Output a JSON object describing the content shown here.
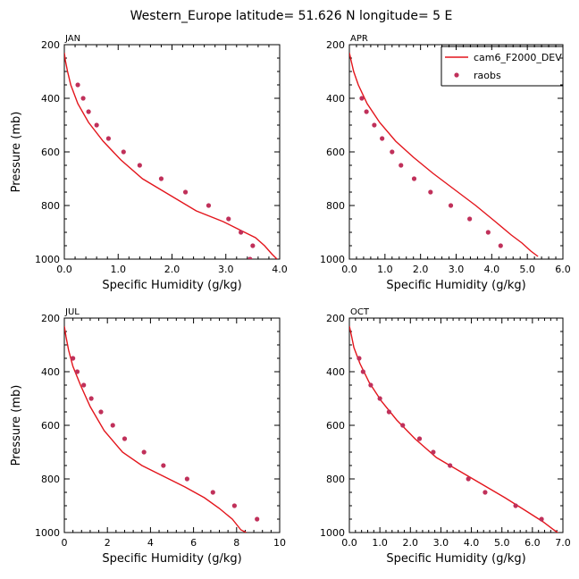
{
  "title": "Western_Europe  latitude= 51.626 N longitude= 5 E",
  "colors": {
    "model_line": "#e3151c",
    "obs_marker": "#c0305a",
    "axes": "#000000"
  },
  "legend": {
    "placement": "top-right of APR panel",
    "entries": [
      {
        "label": "cam6_F2000_DEV",
        "style": "line"
      },
      {
        "label": "raobs",
        "style": "marker"
      }
    ]
  },
  "chart_data": [
    {
      "panel": "JAN",
      "type": "line",
      "xlabel": "Specific Humidity (g/kg)",
      "ylabel": "Pressure (mb)",
      "xlim": [
        0,
        4
      ],
      "ylim": [
        1000,
        200
      ],
      "y_inverted": true,
      "xticks": [
        "0.0",
        "1.0",
        "2.0",
        "3.0",
        "4.0"
      ],
      "yticks": [
        "200",
        "400",
        "600",
        "800",
        "1000"
      ],
      "series": [
        {
          "name": "cam6_F2000_DEV",
          "style": "line",
          "x": [
            0.0,
            0.02,
            0.06,
            0.12,
            0.25,
            0.45,
            0.72,
            1.05,
            1.45,
            1.95,
            2.45,
            2.95,
            3.35,
            3.55,
            3.72,
            3.85,
            3.95
          ],
          "y": [
            230,
            260,
            300,
            350,
            420,
            490,
            560,
            630,
            700,
            760,
            820,
            860,
            900,
            920,
            950,
            980,
            1000
          ]
        },
        {
          "name": "raobs",
          "style": "marker",
          "x": [
            0.25,
            0.35,
            0.45,
            0.6,
            0.82,
            1.1,
            1.4,
            1.8,
            2.25,
            2.68,
            3.05,
            3.28,
            3.5,
            3.45
          ],
          "y": [
            350,
            400,
            450,
            500,
            550,
            600,
            650,
            700,
            750,
            800,
            850,
            900,
            950,
            1000
          ]
        }
      ]
    },
    {
      "panel": "APR",
      "type": "line",
      "xlabel": "Specific Humidity (g/kg)",
      "ylabel": "",
      "xlim": [
        0,
        6
      ],
      "ylim": [
        1000,
        200
      ],
      "y_inverted": true,
      "xticks": [
        "0.0",
        "1.0",
        "2.0",
        "3.0",
        "4.0",
        "5.0",
        "6.0"
      ],
      "yticks": [
        "200",
        "400",
        "600",
        "800",
        "1000"
      ],
      "series": [
        {
          "name": "cam6_F2000_DEV",
          "style": "line",
          "x": [
            0.0,
            0.05,
            0.12,
            0.25,
            0.5,
            0.85,
            1.3,
            1.8,
            2.35,
            2.95,
            3.55,
            4.1,
            4.55,
            4.85,
            5.1,
            5.3
          ],
          "y": [
            230,
            260,
            300,
            350,
            420,
            490,
            560,
            620,
            680,
            740,
            800,
            860,
            910,
            940,
            970,
            990
          ]
        },
        {
          "name": "raobs",
          "style": "marker",
          "x": [
            0.35,
            0.48,
            0.7,
            0.92,
            1.2,
            1.45,
            1.82,
            2.28,
            2.85,
            3.38,
            3.9,
            4.25
          ],
          "y": [
            400,
            450,
            500,
            550,
            600,
            650,
            700,
            750,
            800,
            850,
            900,
            950
          ]
        }
      ]
    },
    {
      "panel": "JUL",
      "type": "line",
      "xlabel": "Specific Humidity (g/kg)",
      "ylabel": "Pressure (mb)",
      "xlim": [
        0,
        10
      ],
      "ylim": [
        1000,
        200
      ],
      "y_inverted": true,
      "xticks": [
        "0",
        "2",
        "4",
        "6",
        "8",
        "10"
      ],
      "yticks": [
        "200",
        "400",
        "600",
        "800",
        "1000"
      ],
      "series": [
        {
          "name": "cam6_F2000_DEV",
          "style": "line",
          "x": [
            0.0,
            0.08,
            0.2,
            0.4,
            0.75,
            1.2,
            1.85,
            2.7,
            3.6,
            4.6,
            5.6,
            6.5,
            7.2,
            7.8,
            8.2,
            8.45
          ],
          "y": [
            230,
            270,
            320,
            380,
            450,
            530,
            620,
            700,
            750,
            790,
            830,
            870,
            910,
            950,
            990,
            1000
          ]
        },
        {
          "name": "raobs",
          "style": "marker",
          "x": [
            0.4,
            0.6,
            0.9,
            1.25,
            1.7,
            2.25,
            2.8,
            3.7,
            4.6,
            5.7,
            6.9,
            7.9,
            8.95
          ],
          "y": [
            350,
            400,
            450,
            500,
            550,
            600,
            650,
            700,
            750,
            800,
            850,
            900,
            950
          ]
        }
      ]
    },
    {
      "panel": "OCT",
      "type": "line",
      "xlabel": "Specific Humidity (g/kg)",
      "ylabel": "",
      "xlim": [
        0,
        7
      ],
      "ylim": [
        1000,
        200
      ],
      "y_inverted": true,
      "xticks": [
        "0.0",
        "1.0",
        "2.0",
        "3.0",
        "4.0",
        "5.0",
        "6.0",
        "7.0"
      ],
      "yticks": [
        "200",
        "400",
        "600",
        "800",
        "1000"
      ],
      "series": [
        {
          "name": "cam6_F2000_DEV",
          "style": "line",
          "x": [
            0.0,
            0.06,
            0.15,
            0.35,
            0.65,
            1.05,
            1.55,
            2.15,
            2.85,
            3.6,
            4.35,
            5.1,
            5.8,
            6.35,
            6.7,
            6.95
          ],
          "y": [
            230,
            260,
            310,
            370,
            440,
            510,
            580,
            650,
            720,
            770,
            820,
            870,
            920,
            960,
            990,
            1010
          ]
        },
        {
          "name": "raobs",
          "style": "marker",
          "x": [
            0.32,
            0.45,
            0.7,
            1.0,
            1.3,
            1.75,
            2.3,
            2.75,
            3.3,
            3.9,
            4.45,
            5.45,
            6.3
          ],
          "y": [
            350,
            400,
            450,
            500,
            550,
            600,
            650,
            700,
            750,
            800,
            850,
            900,
            950
          ]
        }
      ]
    }
  ]
}
